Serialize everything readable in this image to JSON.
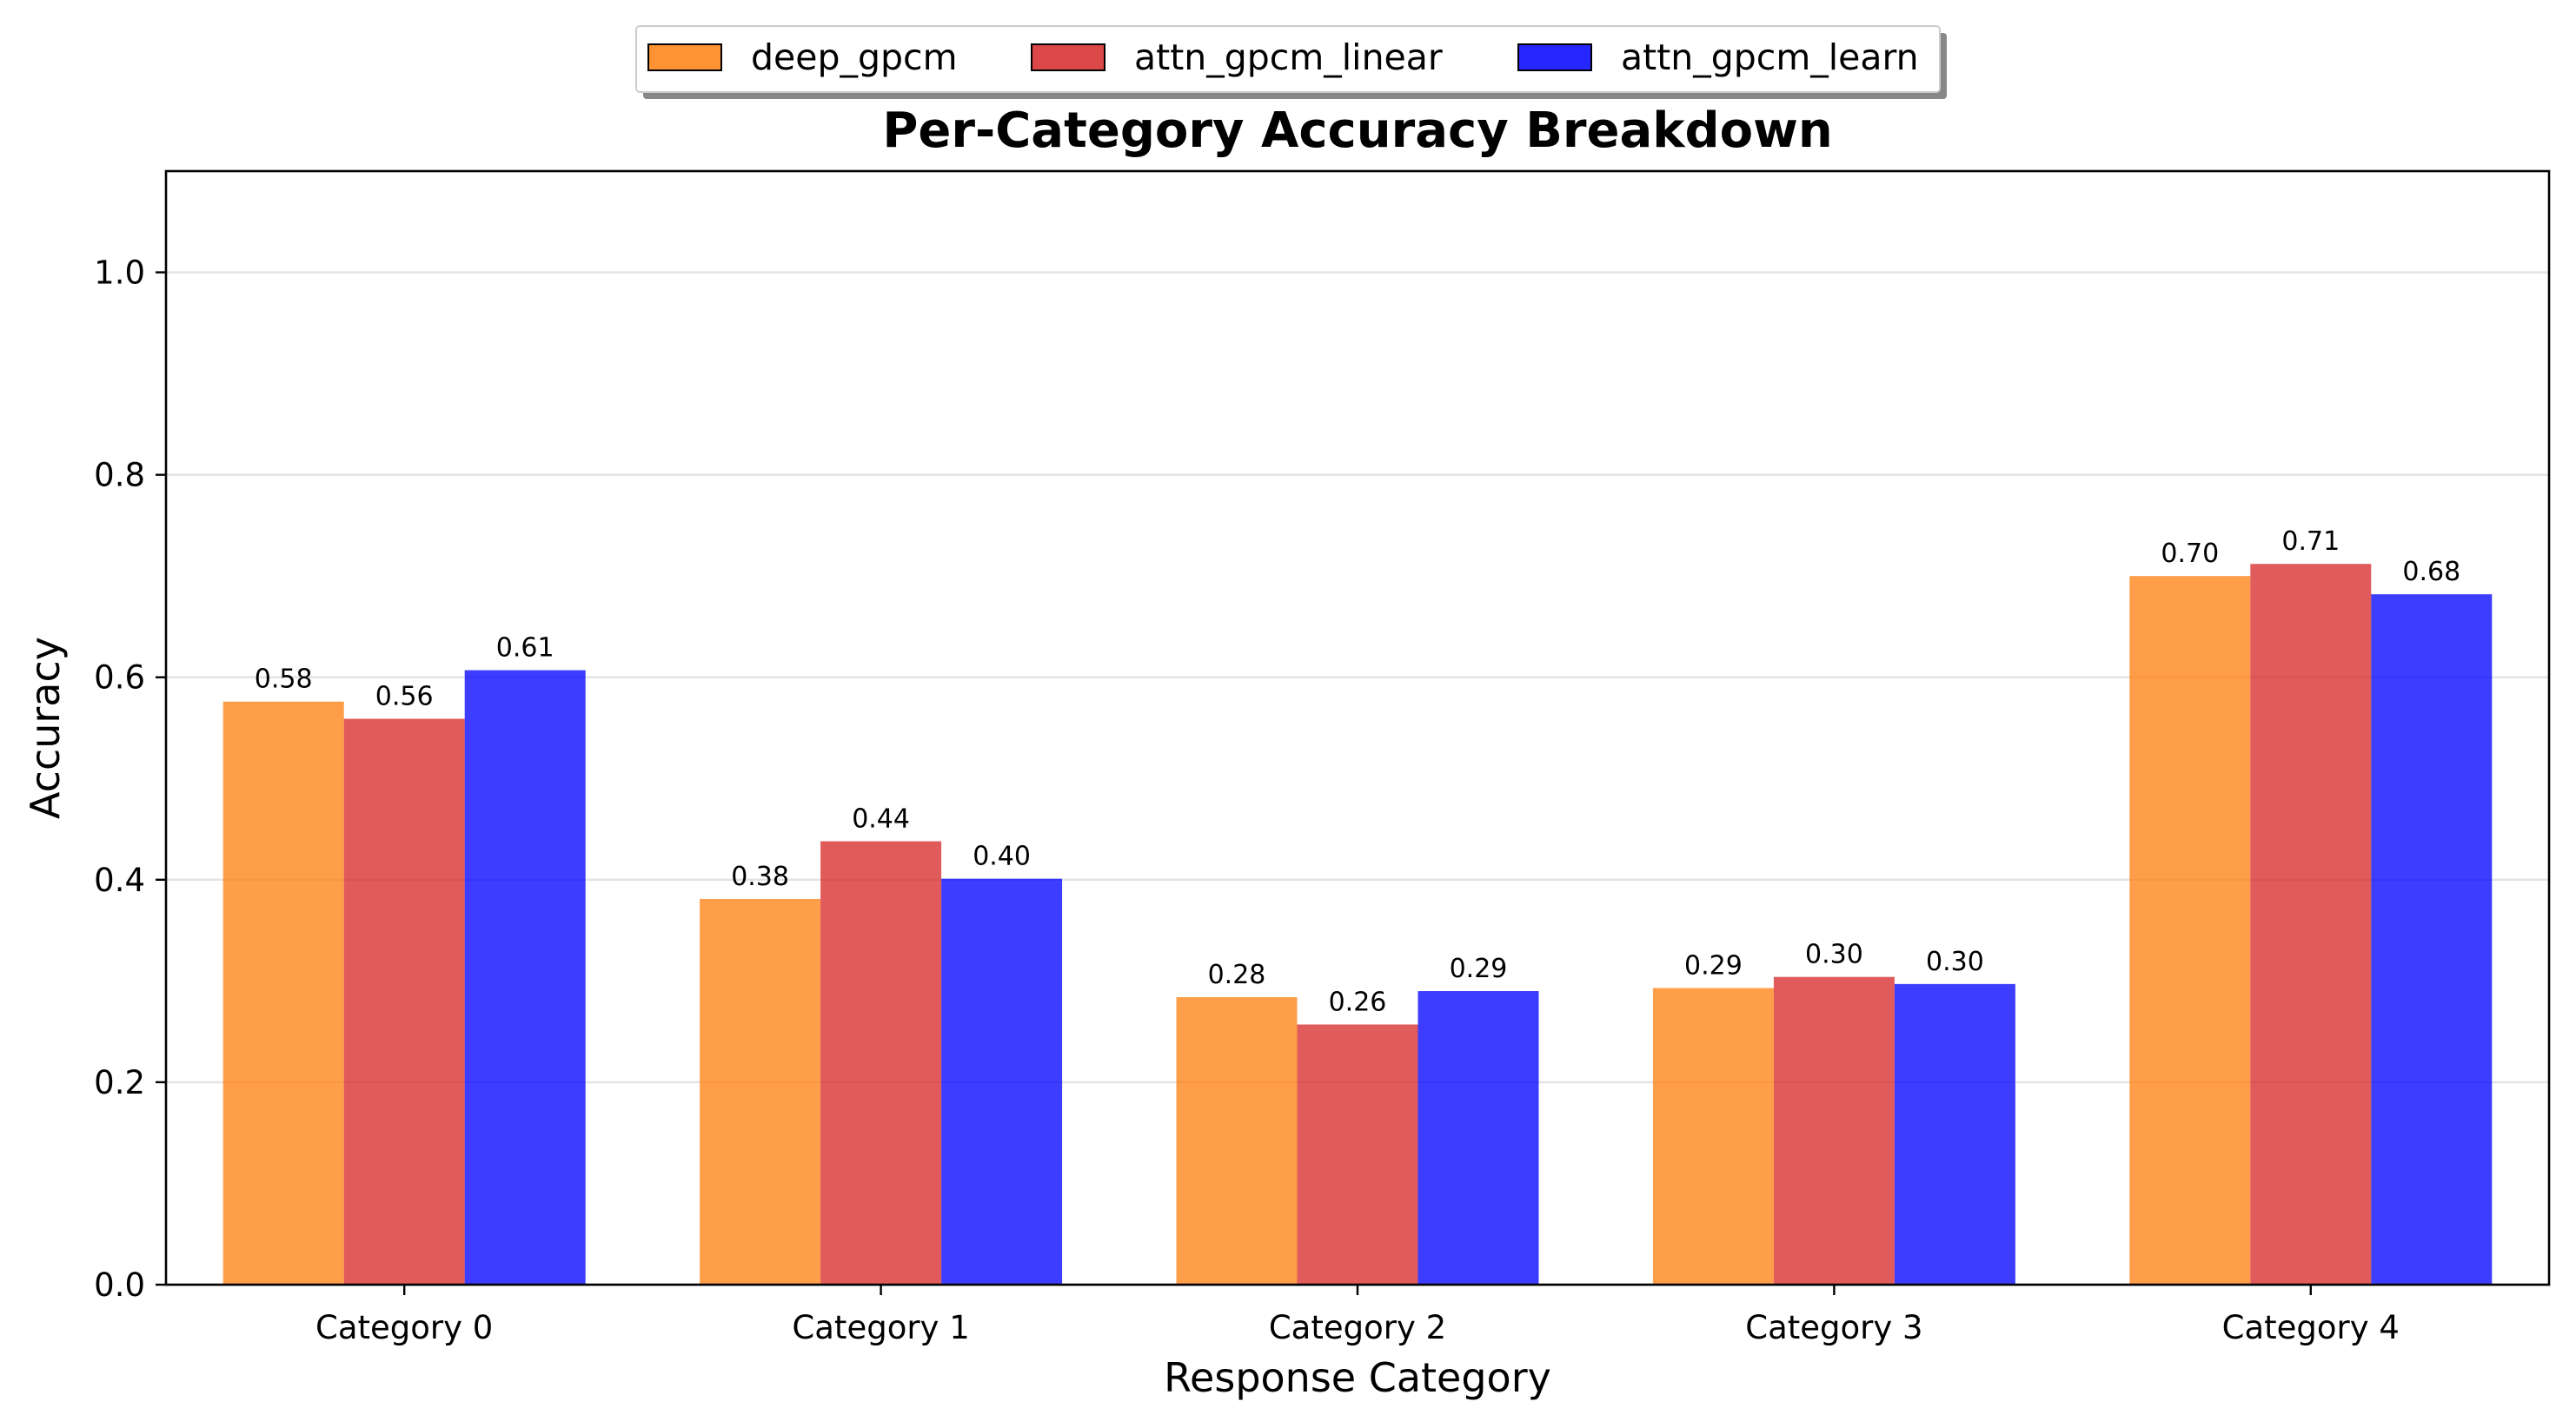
{
  "chart_data": {
    "type": "bar",
    "title": "Per-Category Accuracy Breakdown",
    "xlabel": "Response Category",
    "ylabel": "Accuracy",
    "categories": [
      "Category 0",
      "Category 1",
      "Category 2",
      "Category 3",
      "Category 4"
    ],
    "series": [
      {
        "name": "deep_gpcm",
        "color": "#ff7f0e",
        "values": [
          0.576,
          0.381,
          0.284,
          0.293,
          0.7
        ],
        "labels": [
          "0.58",
          "0.38",
          "0.28",
          "0.29",
          "0.70"
        ]
      },
      {
        "name": "attn_gpcm_linear",
        "color": "#d62728",
        "values": [
          0.559,
          0.438,
          0.257,
          0.304,
          0.712
        ],
        "labels": [
          "0.56",
          "0.44",
          "0.26",
          "0.30",
          "0.71"
        ]
      },
      {
        "name": "attn_gpcm_learn",
        "color": "#0000ff",
        "values": [
          0.607,
          0.401,
          0.29,
          0.297,
          0.682
        ],
        "labels": [
          "0.61",
          "0.40",
          "0.29",
          "0.30",
          "0.68"
        ]
      }
    ],
    "ylim": [
      0,
      1.1
    ],
    "yticks": [
      0.0,
      0.2,
      0.4,
      0.6,
      0.8,
      1.0
    ],
    "ytick_labels": [
      "0.0",
      "0.2",
      "0.4",
      "0.6",
      "0.8",
      "1.0"
    ],
    "grid": "y",
    "legend_position": "top-center, above title"
  }
}
